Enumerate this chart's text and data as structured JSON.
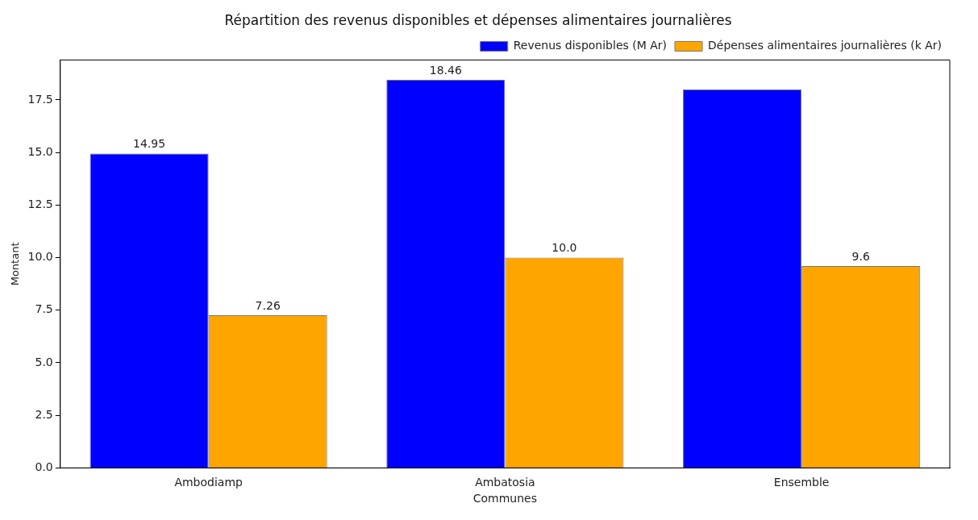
{
  "chart_data": {
    "type": "bar",
    "title": "Répartition des revenus disponibles et dépenses alimentaires journalières",
    "xlabel": "Communes",
    "ylabel": "Montant",
    "categories": [
      "Ambodiamp",
      "Ambatosia",
      "Ensemble"
    ],
    "series": [
      {
        "name": "Revenus disponibles (M Ar)",
        "color": "#0000ff",
        "values": [
          14.95,
          18.46,
          18.0
        ],
        "value_labels": [
          "14.95",
          "18.46",
          null
        ]
      },
      {
        "name": "Dépenses alimentaires journalières (k Ar)",
        "color": "#ffa500",
        "values": [
          7.26,
          10.0,
          9.6
        ],
        "value_labels": [
          "7.26",
          "10.0",
          "9.6"
        ]
      }
    ],
    "ylim": [
      0,
      19.4
    ],
    "yticks": [
      {
        "value": 0,
        "label": "0.0"
      },
      {
        "value": 2.5,
        "label": "2.5"
      },
      {
        "value": 5,
        "label": "5.0"
      },
      {
        "value": 7.5,
        "label": "7.5"
      },
      {
        "value": 10,
        "label": "10.0"
      },
      {
        "value": 12.5,
        "label": "12.5"
      },
      {
        "value": 15,
        "label": "15.0"
      },
      {
        "value": 17.5,
        "label": "17.5"
      }
    ],
    "grid": false,
    "legend": "top right"
  }
}
